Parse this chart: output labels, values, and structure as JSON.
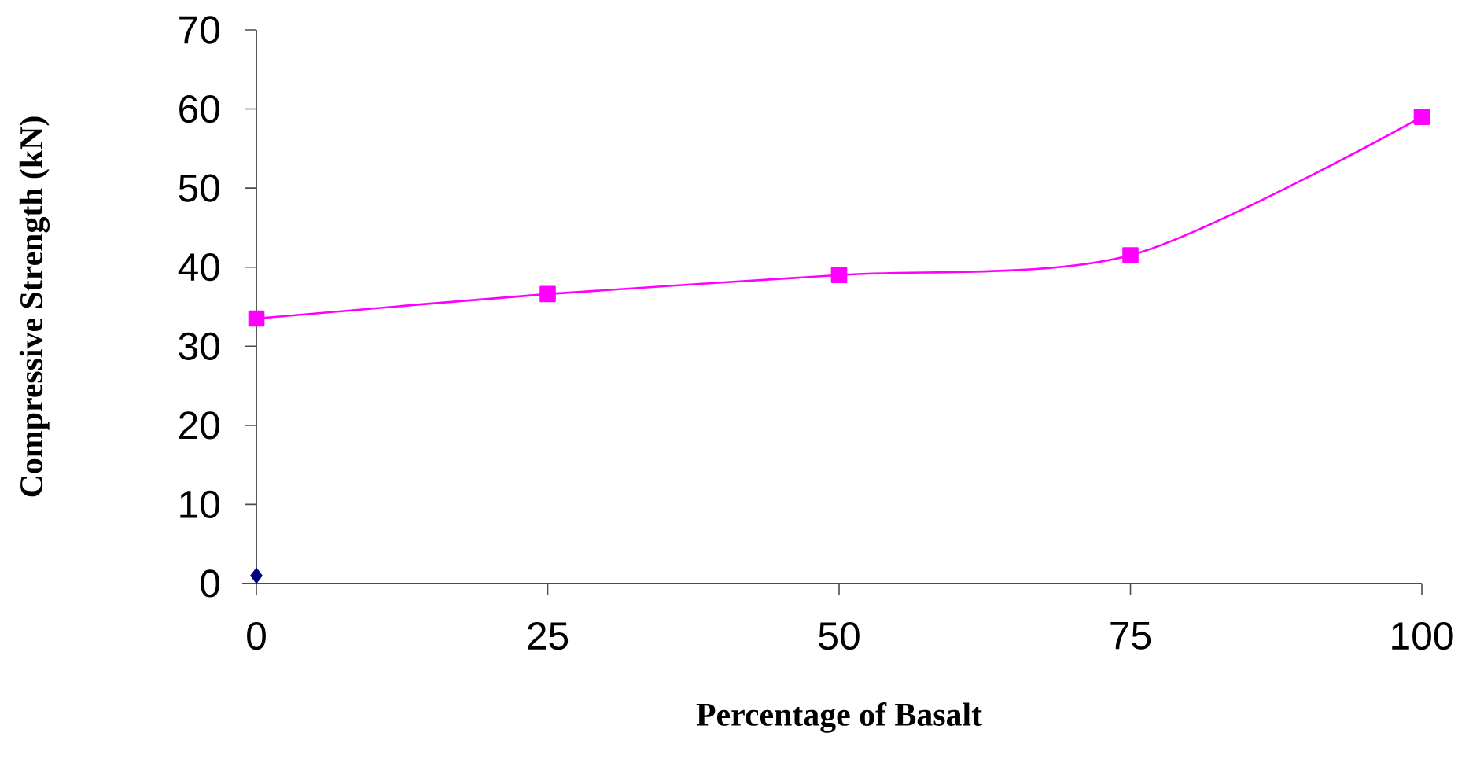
{
  "chart_data": {
    "type": "line",
    "xlabel": "Percentage of Basalt",
    "ylabel": "Compressive Strength (kN)",
    "x": [
      0,
      25,
      50,
      75,
      100
    ],
    "series": [
      {
        "color": "#ff00ff",
        "values": [
          33.5,
          36.6,
          39.0,
          41.5,
          59.0
        ],
        "marker": "square"
      },
      {
        "type": "scatter",
        "color": "#000080",
        "x": [
          0
        ],
        "values": [
          1.0
        ],
        "marker": "diamond"
      }
    ],
    "xlim": [
      0,
      100
    ],
    "xticks": [
      0,
      25,
      50,
      75,
      100
    ],
    "ylim": [
      0,
      70
    ],
    "yticks": [
      0,
      10,
      20,
      30,
      40,
      50,
      60,
      70
    ]
  }
}
